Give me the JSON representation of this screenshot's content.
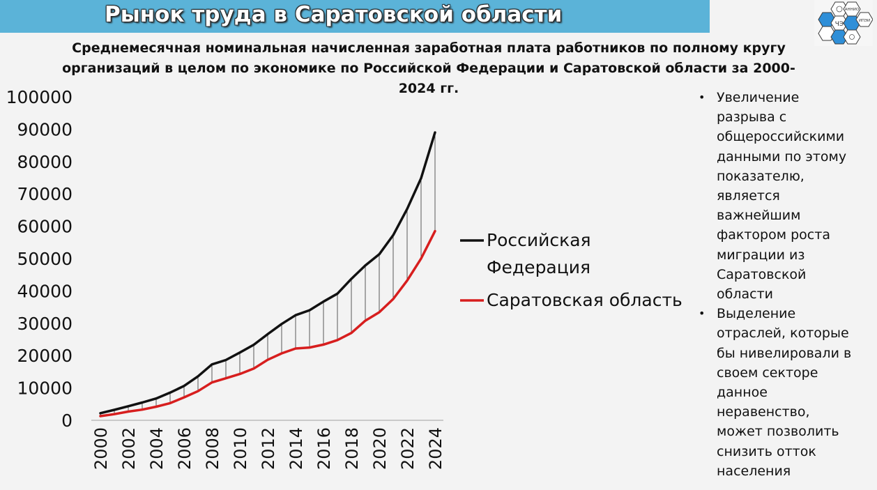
{
  "slide": {
    "title": "Рынок труда в Саратовской области"
  },
  "chart_data": {
    "type": "line",
    "title": "Среднемесячная номинальная начисленная заработная плата работников по полному кругу организаций в целом по экономике по Российской Федерации и Саратовской области за 2000-2024 гг.",
    "xlabel": "",
    "ylabel": "",
    "ylim": [
      0,
      100000
    ],
    "yticks": [
      "0",
      "10000",
      "20000",
      "30000",
      "40000",
      "50000",
      "60000",
      "70000",
      "80000",
      "90000",
      "100000"
    ],
    "xticks": [
      "2000",
      "2002",
      "2004",
      "2006",
      "2008",
      "2010",
      "2012",
      "2014",
      "2016",
      "2018",
      "2020",
      "2022",
      "2024"
    ],
    "x": [
      2000,
      2001,
      2002,
      2003,
      2004,
      2005,
      2006,
      2007,
      2008,
      2009,
      2010,
      2011,
      2012,
      2013,
      2014,
      2015,
      2016,
      2017,
      2018,
      2019,
      2020,
      2021,
      2022,
      2023,
      2024
    ],
    "grid": false,
    "legend_position": "right",
    "series": [
      {
        "name": "Российская Федерация",
        "color": "#111111",
        "values": [
          2200,
          3240,
          4360,
          5500,
          6740,
          8550,
          10630,
          13590,
          17290,
          18640,
          20950,
          23370,
          26630,
          29790,
          32500,
          34030,
          36710,
          39170,
          43720,
          47870,
          51340,
          57240,
          65340,
          74850,
          89000
        ]
      },
      {
        "name": "Саратовская область",
        "color": "#d71e1e",
        "values": [
          1300,
          1900,
          2700,
          3300,
          4200,
          5300,
          7100,
          9000,
          11700,
          13000,
          14300,
          16000,
          18700,
          20700,
          22200,
          22500,
          23400,
          24800,
          27000,
          30800,
          33400,
          37500,
          43200,
          50000,
          58500
        ]
      }
    ]
  },
  "bullets": {
    "items": [
      "Увеличение разрыва с общероссийскими данными по этому показателю, является важнейшим фактором роста миграции из Саратовской области",
      "Выделение отраслей, которые бы нивелировали в своем секторе данное неравенство, может позволить снизить отток населения"
    ],
    "lines": [
      [
        "Увеличение",
        "разрыва с",
        "общероссийскими",
        "данными по этому",
        "показателю,",
        "является",
        "важнейшим",
        "фактором роста",
        "миграции из",
        "Саратовской",
        "области"
      ],
      [
        "Выделение",
        "отраслей, которые",
        "бы нивелировали в",
        "своем секторе",
        "данное",
        "неравенство,",
        "может позволить",
        "снизить отток",
        "населения"
      ]
    ],
    "marker": "•"
  },
  "logo": {
    "text_top": "АННИО",
    "text_right": "ИПЭИ",
    "text_center": "ЧЭ"
  }
}
